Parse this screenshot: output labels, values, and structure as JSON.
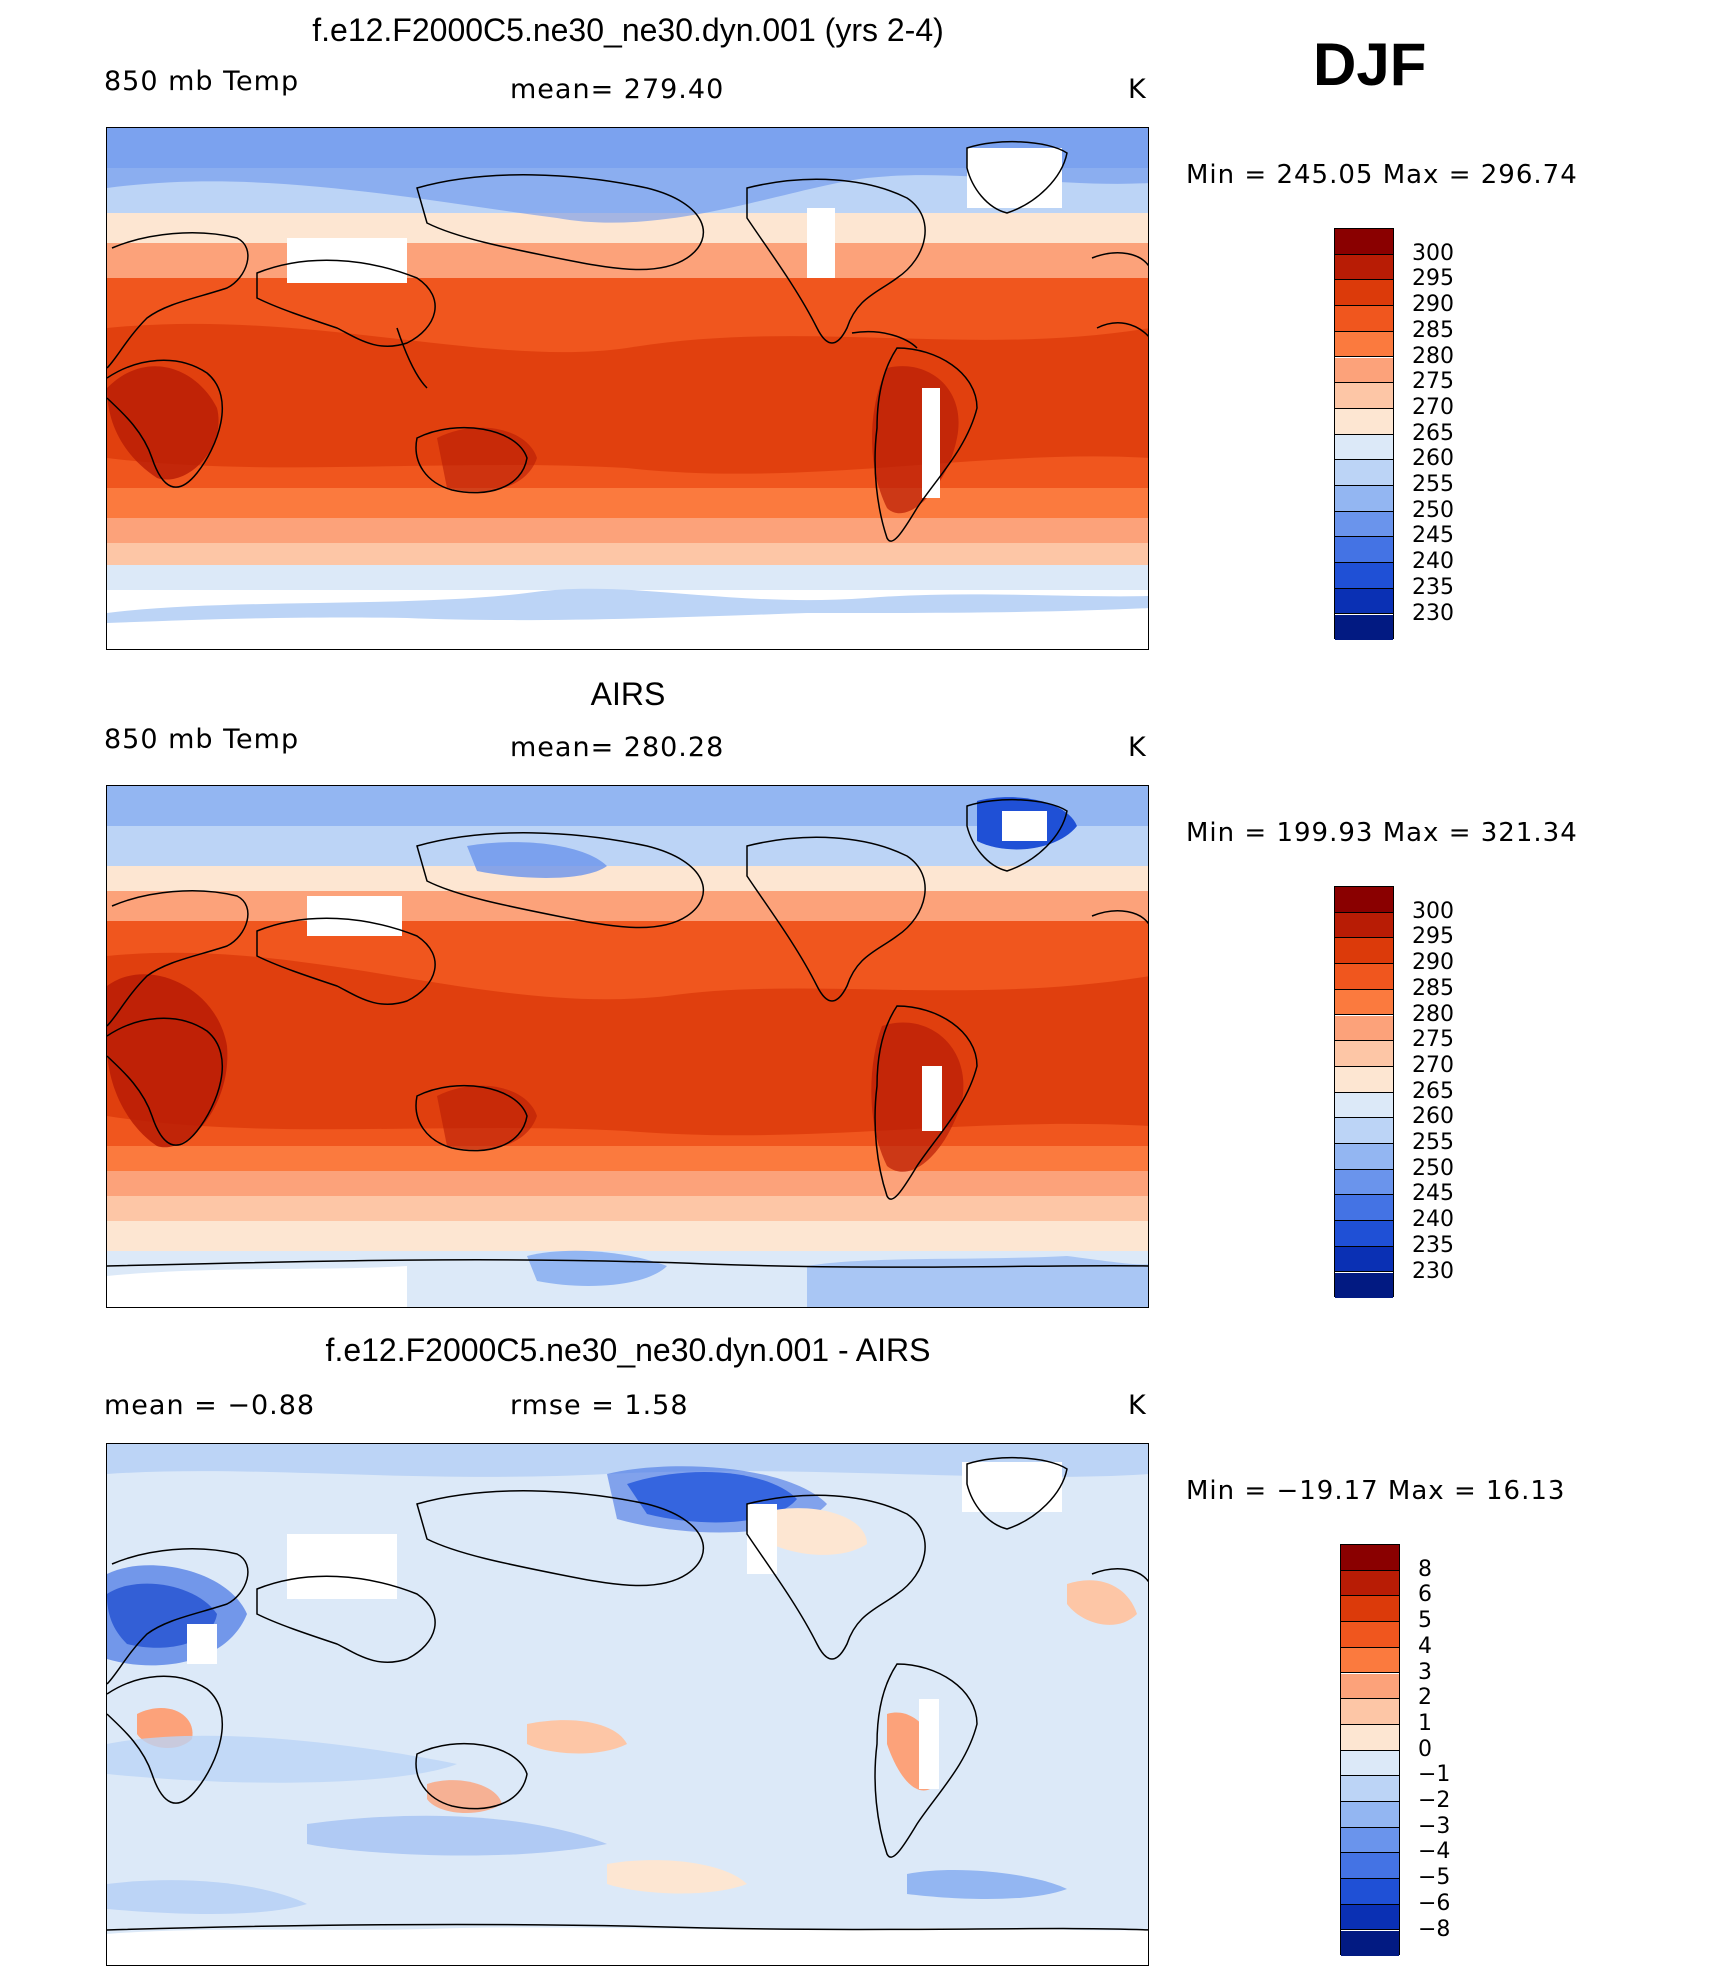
{
  "season": "DJF",
  "panels": [
    {
      "title": "f.e12.F2000C5.ne30_ne30.dyn.001 (yrs 2-4)",
      "left_label": "850 mb Temp",
      "center_label": "mean=  279.40",
      "units": "K",
      "minmax": "Min  =  245.05  Max  =  296.74",
      "kind": "abs"
    },
    {
      "title": "AIRS",
      "left_label": "850 mb Temp",
      "center_label": "mean=  280.28",
      "units": "K",
      "minmax": "Min  =  199.93  Max  =  321.34",
      "kind": "abs"
    },
    {
      "title": "f.e12.F2000C5.ne30_ne30.dyn.001 - AIRS",
      "left_label": "mean  =    −0.88",
      "center_label": "rmse  =     1.58",
      "units": "K",
      "minmax": "Min  =  −19.17  Max  =    16.13",
      "kind": "diff"
    }
  ],
  "colorbars": {
    "abs": {
      "labels": [
        "300",
        "295",
        "290",
        "285",
        "280",
        "275",
        "270",
        "265",
        "260",
        "255",
        "250",
        "245",
        "240",
        "235",
        "230"
      ],
      "colors": [
        "#8a0000",
        "#b81c05",
        "#dc3a0a",
        "#f0561e",
        "#fb7a3e",
        "#fca27a",
        "#fdc6a6",
        "#fde6d2",
        "#dce9f8",
        "#bcd4f6",
        "#93b6f2",
        "#6a94ec",
        "#4473e4",
        "#1f50d6",
        "#0a30b4",
        "#021a82"
      ]
    },
    "diff": {
      "labels": [
        "8",
        "6",
        "5",
        "4",
        "3",
        "2",
        "1",
        "0",
        "−1",
        "−2",
        "−3",
        "−4",
        "−5",
        "−6",
        "−8"
      ],
      "colors": [
        "#8a0000",
        "#b81c05",
        "#dc3a0a",
        "#f0561e",
        "#fb7a3e",
        "#fca27a",
        "#fdc6a6",
        "#fde6d2",
        "#dce9f8",
        "#bcd4f6",
        "#93b6f2",
        "#6a94ec",
        "#4473e4",
        "#1f50d6",
        "#0a30b4",
        "#021a82"
      ]
    }
  }
}
